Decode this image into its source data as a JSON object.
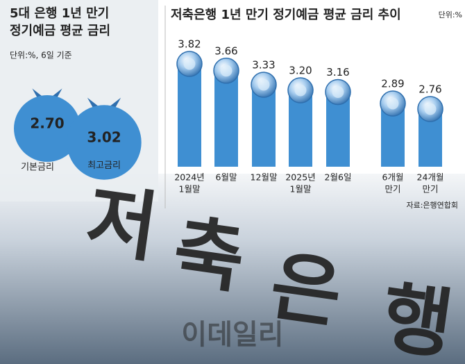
{
  "chart_data": [
    {
      "type": "bag",
      "title": [
        "5대 은행 1년 만기",
        "정기예금 평균 금리"
      ],
      "subtitle": "단위:%, 6일 기준",
      "categories": [
        "기본금리",
        "최고금리"
      ],
      "values": [
        2.7,
        3.02
      ],
      "value_labels": [
        "2.70",
        "3.02"
      ],
      "color": "#3f8fd2"
    },
    {
      "type": "bar",
      "title": "저축은행 1년 만기 정기예금 평균 금리 추이",
      "unit": "단위:%",
      "categories": [
        [
          "2024년",
          "1월말"
        ],
        [
          "6월말"
        ],
        [
          "12월말"
        ],
        [
          "2025년",
          "1월말"
        ],
        [
          "2월6일"
        ],
        [
          "6개월",
          "만기"
        ],
        [
          "24개월",
          "만기"
        ]
      ],
      "values": [
        3.82,
        3.66,
        3.33,
        3.2,
        3.16,
        2.89,
        2.76
      ],
      "value_labels": [
        "3.82",
        "3.66",
        "3.33",
        "3.20",
        "3.16",
        "2.89",
        "2.76"
      ],
      "color": "#3f8fd2",
      "source": "자료:은행연합회"
    },
    {
      "type": "photo",
      "sign": [
        "저",
        "축",
        "은",
        "행"
      ],
      "watermark": "이데일리"
    }
  ]
}
